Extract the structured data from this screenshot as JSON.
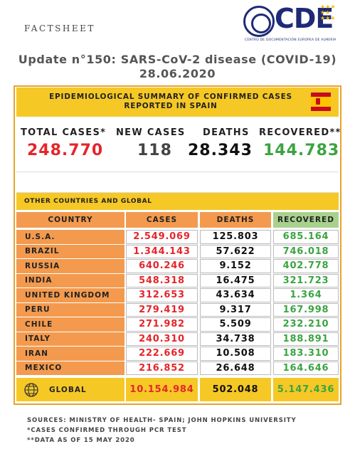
{
  "header": {
    "factsheet": "FACTSHEET",
    "logo_text": "CDE",
    "logo_subtitle": "CENTRO DE DOCUMENTACIÓN EUROPEA DE ALMERÍA",
    "title_line1": "Update n°150: SARS-CoV-2 disease (COVID-19)",
    "title_line2": "28.06.2020"
  },
  "spain": {
    "banner_line1": "EPIDEMIOLOGICAL SUMMARY OF CONFIRMED CASES",
    "banner_line2": "REPORTED IN SPAIN",
    "labels": {
      "total_cases": "TOTAL CASES*",
      "new_cases": "NEW CASES",
      "deaths": "DEATHS",
      "recovered": "RECOVERED**"
    },
    "values": {
      "total_cases": "248.770",
      "new_cases": "118",
      "deaths": "28.343",
      "recovered": "144.783"
    }
  },
  "global": {
    "banner": "OTHER COUNTRIES AND GLOBAL",
    "headers": {
      "country": "COUNTRY",
      "cases": "CASES",
      "deaths": "DEATHS",
      "recovered": "RECOVERED"
    },
    "rows": [
      {
        "country": "U.S.A.",
        "cases": "2.549.069",
        "deaths": "125.803",
        "recovered": "685.164"
      },
      {
        "country": "BRAZIL",
        "cases": "1.344.143",
        "deaths": "57.622",
        "recovered": "746.018"
      },
      {
        "country": "RUSSIA",
        "cases": "640.246",
        "deaths": "9.152",
        "recovered": "402.778"
      },
      {
        "country": "INDIA",
        "cases": "548.318",
        "deaths": "16.475",
        "recovered": "321.723"
      },
      {
        "country": "UNITED KINGDOM",
        "cases": "312.653",
        "deaths": "43.634",
        "recovered": "1.364"
      },
      {
        "country": "PERU",
        "cases": "279.419",
        "deaths": "9.317",
        "recovered": "167.998"
      },
      {
        "country": "CHILE",
        "cases": "271.982",
        "deaths": "5.509",
        "recovered": "232.210"
      },
      {
        "country": "ITALY",
        "cases": "240.310",
        "deaths": "34.738",
        "recovered": "188.891"
      },
      {
        "country": "IRAN",
        "cases": "222.669",
        "deaths": "10.508",
        "recovered": "183.310"
      },
      {
        "country": "MEXICO",
        "cases": "216.852",
        "deaths": "26.648",
        "recovered": "164.646"
      }
    ],
    "total": {
      "label": "GLOBAL",
      "cases": "10.154.984",
      "deaths": "502.048",
      "recovered": "5.147.436"
    }
  },
  "footer": {
    "sources": "SOURCES: MINISTRY OF HEALTH- SPAIN; JOHN HOPKINS UNIVERSITY",
    "note1": "*CASES CONFIRMED THROUGH PCR TEST",
    "note2": "**DATA AS OF 15 MAY 2020"
  },
  "colors": {
    "banner_yellow": "#f6c825",
    "country_orange": "#f39a4e",
    "cases_red": "#e5252b",
    "recovered_green": "#3ba441",
    "logo_blue": "#1e2a78"
  }
}
